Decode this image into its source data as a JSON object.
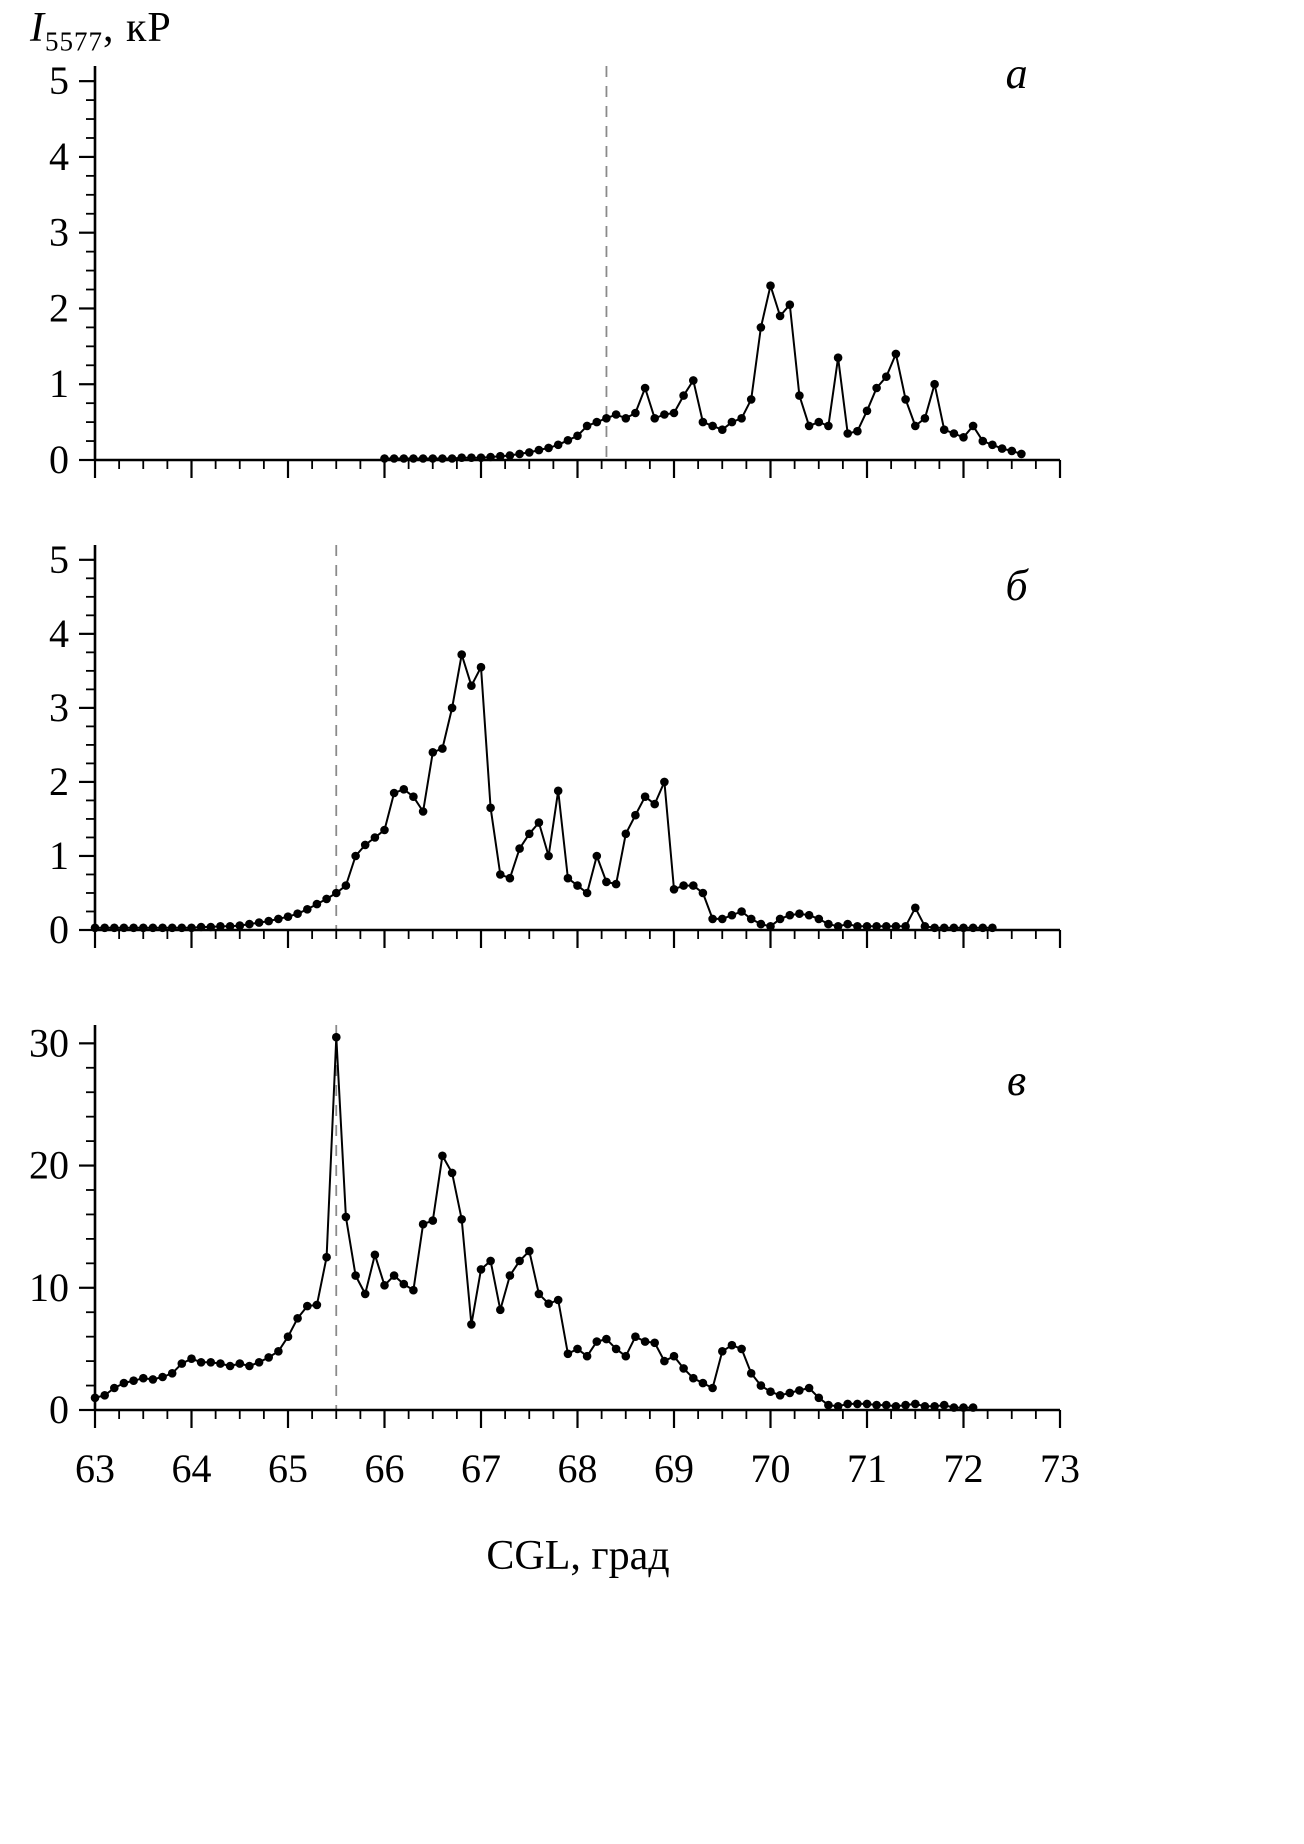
{
  "figure": {
    "background": "#ffffff",
    "axis_color": "#000000",
    "line_color": "#000000",
    "dashed_color": "#8a8a8a",
    "y_axis_title": {
      "symbol": "I",
      "subscript": "5577",
      "unit": ", кР"
    },
    "x_axis_title": "CGL, град"
  },
  "chart_data": [
    {
      "type": "line",
      "panel_label": "а",
      "xlabel": "CGL, град",
      "ylabel": "I5577, кР",
      "xlim": [
        63,
        73
      ],
      "ylim": [
        0,
        5.2
      ],
      "x_ticks": [
        63,
        64,
        65,
        66,
        67,
        68,
        69,
        70,
        71,
        72,
        73
      ],
      "x_tick_labels": [
        "63",
        "64",
        "65",
        "66",
        "67",
        "68",
        "69",
        "70",
        "71",
        "72",
        "73"
      ],
      "show_x_tick_labels": false,
      "y_ticks": [
        0,
        1,
        2,
        3,
        4,
        5
      ],
      "y_tick_labels": [
        "0",
        "1",
        "2",
        "3",
        "4",
        "5"
      ],
      "x_minor_step": 0.25,
      "y_minor_step": 0.25,
      "dashed_x": 68.3,
      "grid": false,
      "legend": null,
      "x": [
        66.0,
        66.1,
        66.2,
        66.3,
        66.4,
        66.5,
        66.6,
        66.7,
        66.8,
        66.9,
        67.0,
        67.1,
        67.2,
        67.3,
        67.4,
        67.5,
        67.6,
        67.7,
        67.8,
        67.9,
        68.0,
        68.1,
        68.2,
        68.3,
        68.4,
        68.5,
        68.6,
        68.7,
        68.8,
        68.9,
        69.0,
        69.1,
        69.2,
        69.3,
        69.4,
        69.5,
        69.6,
        69.7,
        69.8,
        69.9,
        70.0,
        70.1,
        70.2,
        70.3,
        70.4,
        70.5,
        70.6,
        70.7,
        70.8,
        70.9,
        71.0,
        71.1,
        71.2,
        71.3,
        71.4,
        71.5,
        71.6,
        71.7,
        71.8,
        71.9,
        72.0,
        72.1,
        72.2,
        72.3,
        72.4,
        72.5,
        72.6
      ],
      "y": [
        0.02,
        0.02,
        0.02,
        0.02,
        0.02,
        0.02,
        0.02,
        0.02,
        0.03,
        0.03,
        0.03,
        0.04,
        0.05,
        0.06,
        0.08,
        0.1,
        0.13,
        0.16,
        0.2,
        0.26,
        0.32,
        0.45,
        0.5,
        0.55,
        0.6,
        0.55,
        0.62,
        0.95,
        0.55,
        0.6,
        0.62,
        0.85,
        1.05,
        0.5,
        0.45,
        0.4,
        0.5,
        0.55,
        0.8,
        1.75,
        2.3,
        1.9,
        2.05,
        0.85,
        0.45,
        0.5,
        0.45,
        1.35,
        0.35,
        0.38,
        0.65,
        0.95,
        1.1,
        1.4,
        0.8,
        0.45,
        0.55,
        1.0,
        0.4,
        0.35,
        0.3,
        0.45,
        0.25,
        0.2,
        0.15,
        0.12,
        0.08
      ]
    },
    {
      "type": "line",
      "panel_label": "б",
      "xlabel": "CGL, град",
      "ylabel": "I5577, кР",
      "xlim": [
        63,
        73
      ],
      "ylim": [
        0,
        5.2
      ],
      "x_ticks": [
        63,
        64,
        65,
        66,
        67,
        68,
        69,
        70,
        71,
        72,
        73
      ],
      "x_tick_labels": [
        "63",
        "64",
        "65",
        "66",
        "67",
        "68",
        "69",
        "70",
        "71",
        "72",
        "73"
      ],
      "show_x_tick_labels": false,
      "y_ticks": [
        0,
        1,
        2,
        3,
        4,
        5
      ],
      "y_tick_labels": [
        "0",
        "1",
        "2",
        "3",
        "4",
        "5"
      ],
      "x_minor_step": 0.25,
      "y_minor_step": 0.25,
      "dashed_x": 65.5,
      "grid": false,
      "legend": null,
      "x": [
        63.0,
        63.1,
        63.2,
        63.3,
        63.4,
        63.5,
        63.6,
        63.7,
        63.8,
        63.9,
        64.0,
        64.1,
        64.2,
        64.3,
        64.4,
        64.5,
        64.6,
        64.7,
        64.8,
        64.9,
        65.0,
        65.1,
        65.2,
        65.3,
        65.4,
        65.5,
        65.6,
        65.7,
        65.8,
        65.9,
        66.0,
        66.1,
        66.2,
        66.3,
        66.4,
        66.5,
        66.6,
        66.7,
        66.8,
        66.9,
        67.0,
        67.1,
        67.2,
        67.3,
        67.4,
        67.5,
        67.6,
        67.7,
        67.8,
        67.9,
        68.0,
        68.1,
        68.2,
        68.3,
        68.4,
        68.5,
        68.6,
        68.7,
        68.8,
        68.9,
        69.0,
        69.1,
        69.2,
        69.3,
        69.4,
        69.5,
        69.6,
        69.7,
        69.8,
        69.9,
        70.0,
        70.1,
        70.2,
        70.3,
        70.4,
        70.5,
        70.6,
        70.7,
        70.8,
        70.9,
        71.0,
        71.1,
        71.2,
        71.3,
        71.4,
        71.5,
        71.6,
        71.7,
        71.8,
        71.9,
        72.0,
        72.1,
        72.2,
        72.3
      ],
      "y": [
        0.03,
        0.03,
        0.03,
        0.03,
        0.03,
        0.03,
        0.03,
        0.03,
        0.03,
        0.03,
        0.03,
        0.04,
        0.04,
        0.05,
        0.05,
        0.06,
        0.08,
        0.1,
        0.12,
        0.15,
        0.18,
        0.22,
        0.28,
        0.35,
        0.42,
        0.5,
        0.6,
        1.0,
        1.15,
        1.25,
        1.35,
        1.85,
        1.9,
        1.8,
        1.6,
        2.4,
        2.45,
        3.0,
        3.72,
        3.3,
        3.55,
        1.65,
        0.75,
        0.7,
        1.1,
        1.3,
        1.45,
        1.0,
        1.88,
        0.7,
        0.6,
        0.5,
        1.0,
        0.65,
        0.62,
        1.3,
        1.55,
        1.8,
        1.7,
        2.0,
        0.55,
        0.6,
        0.6,
        0.5,
        0.15,
        0.15,
        0.2,
        0.25,
        0.15,
        0.08,
        0.05,
        0.15,
        0.2,
        0.22,
        0.2,
        0.15,
        0.08,
        0.05,
        0.08,
        0.05,
        0.05,
        0.05,
        0.05,
        0.05,
        0.05,
        0.3,
        0.05,
        0.03,
        0.03,
        0.03,
        0.03,
        0.03,
        0.03,
        0.03
      ]
    },
    {
      "type": "line",
      "panel_label": "в",
      "xlabel": "CGL, град",
      "ylabel": "I5577, кР",
      "xlim": [
        63,
        73
      ],
      "ylim": [
        0,
        31.5
      ],
      "x_ticks": [
        63,
        64,
        65,
        66,
        67,
        68,
        69,
        70,
        71,
        72,
        73
      ],
      "x_tick_labels": [
        "63",
        "64",
        "65",
        "66",
        "67",
        "68",
        "69",
        "70",
        "71",
        "72",
        "73"
      ],
      "show_x_tick_labels": true,
      "y_ticks": [
        0,
        10,
        20,
        30
      ],
      "y_tick_labels": [
        "0",
        "10",
        "20",
        "30"
      ],
      "x_minor_step": 0.25,
      "y_minor_step": 2,
      "dashed_x": 65.5,
      "grid": false,
      "legend": null,
      "x": [
        63.0,
        63.1,
        63.2,
        63.3,
        63.4,
        63.5,
        63.6,
        63.7,
        63.8,
        63.9,
        64.0,
        64.1,
        64.2,
        64.3,
        64.4,
        64.5,
        64.6,
        64.7,
        64.8,
        64.9,
        65.0,
        65.1,
        65.2,
        65.3,
        65.4,
        65.5,
        65.6,
        65.7,
        65.8,
        65.9,
        66.0,
        66.1,
        66.2,
        66.3,
        66.4,
        66.5,
        66.6,
        66.7,
        66.8,
        66.9,
        67.0,
        67.1,
        67.2,
        67.3,
        67.4,
        67.5,
        67.6,
        67.7,
        67.8,
        67.9,
        68.0,
        68.1,
        68.2,
        68.3,
        68.4,
        68.5,
        68.6,
        68.7,
        68.8,
        68.9,
        69.0,
        69.1,
        69.2,
        69.3,
        69.4,
        69.5,
        69.6,
        69.7,
        69.8,
        69.9,
        70.0,
        70.1,
        70.2,
        70.3,
        70.4,
        70.5,
        70.6,
        70.7,
        70.8,
        70.9,
        71.0,
        71.1,
        71.2,
        71.3,
        71.4,
        71.5,
        71.6,
        71.7,
        71.8,
        71.9,
        72.0,
        72.1
      ],
      "y": [
        1.0,
        1.2,
        1.8,
        2.2,
        2.4,
        2.6,
        2.5,
        2.7,
        3.0,
        3.8,
        4.2,
        3.9,
        3.9,
        3.8,
        3.6,
        3.8,
        3.6,
        3.9,
        4.3,
        4.8,
        6.0,
        7.5,
        8.5,
        8.6,
        12.5,
        30.5,
        15.8,
        11.0,
        9.5,
        12.7,
        10.2,
        11.0,
        10.3,
        9.8,
        15.2,
        15.5,
        20.8,
        19.4,
        15.6,
        7.0,
        11.5,
        12.2,
        8.2,
        11.0,
        12.2,
        13.0,
        9.5,
        8.7,
        9.0,
        4.6,
        5.0,
        4.4,
        5.6,
        5.8,
        5.0,
        4.4,
        6.0,
        5.6,
        5.5,
        4.0,
        4.4,
        3.4,
        2.6,
        2.2,
        1.8,
        4.8,
        5.3,
        5.0,
        3.0,
        2.0,
        1.5,
        1.2,
        1.4,
        1.6,
        1.8,
        1.0,
        0.4,
        0.3,
        0.5,
        0.5,
        0.5,
        0.4,
        0.4,
        0.3,
        0.4,
        0.5,
        0.3,
        0.3,
        0.4,
        0.2,
        0.2,
        0.2
      ]
    }
  ]
}
